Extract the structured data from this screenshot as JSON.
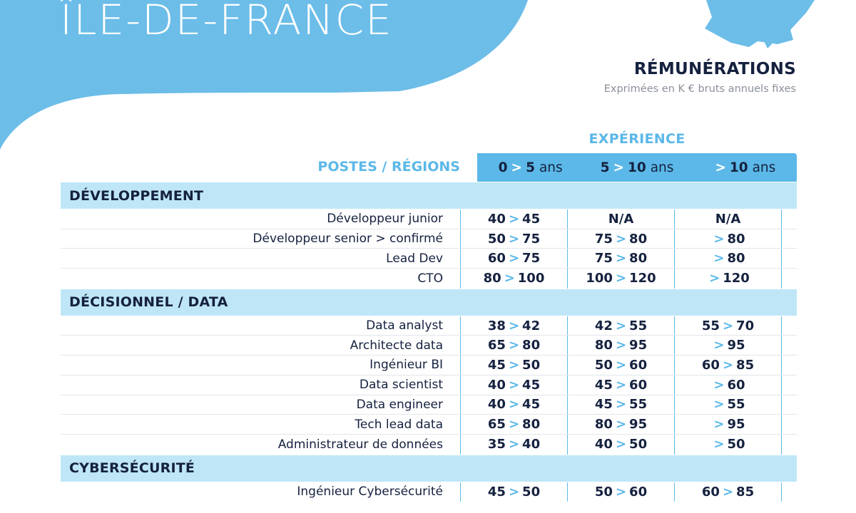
{
  "page": {
    "region": "ÎLE-DE-FRANCE",
    "remunerations_title": "RÉMUNÉRATIONS",
    "remunerations_subtitle": "Exprimées en K € bruts annuels fixes",
    "experience_title": "EXPÉRIENCE",
    "postes_label": "POSTES / RÉGIONS"
  },
  "colors": {
    "accent": "#5bb8e8",
    "section_bg": "#bfe6f7",
    "text_dark": "#15213f",
    "text_muted": "#8a8f99"
  },
  "experience_columns": [
    {
      "from": "0",
      "sep": ">",
      "to": "5",
      "unit": "ans"
    },
    {
      "from": "5",
      "sep": ">",
      "to": "10",
      "unit": "ans"
    },
    {
      "from": "",
      "sep": ">",
      "to": "10",
      "unit": "ans"
    }
  ],
  "sections": [
    {
      "title": "DÉVELOPPEMENT",
      "rows": [
        {
          "label": "Développeur junior",
          "values": [
            [
              "40",
              "45"
            ],
            [
              "",
              "N/A"
            ],
            [
              "",
              "N/A"
            ]
          ]
        },
        {
          "label": "Développeur senior > confirmé",
          "values": [
            [
              "50",
              "75"
            ],
            [
              "75",
              "80"
            ],
            [
              ">",
              "80"
            ]
          ]
        },
        {
          "label": "Lead Dev",
          "values": [
            [
              "60",
              "75"
            ],
            [
              "75",
              "80"
            ],
            [
              ">",
              "80"
            ]
          ]
        },
        {
          "label": "CTO",
          "values": [
            [
              "80",
              "100"
            ],
            [
              "100",
              "120"
            ],
            [
              ">",
              "120"
            ]
          ]
        }
      ]
    },
    {
      "title": "DÉCISIONNEL / DATA",
      "rows": [
        {
          "label": "Data analyst",
          "values": [
            [
              "38",
              "42"
            ],
            [
              "42",
              "55"
            ],
            [
              "55",
              "70"
            ]
          ]
        },
        {
          "label": "Architecte data",
          "values": [
            [
              "65",
              "80"
            ],
            [
              "80",
              "95"
            ],
            [
              ">",
              "95"
            ]
          ]
        },
        {
          "label": "Ingénieur BI",
          "values": [
            [
              "45",
              "50"
            ],
            [
              "50",
              "60"
            ],
            [
              "60",
              "85"
            ]
          ]
        },
        {
          "label": "Data scientist",
          "values": [
            [
              "40",
              "45"
            ],
            [
              "45",
              "60"
            ],
            [
              ">",
              "60"
            ]
          ]
        },
        {
          "label": "Data engineer",
          "values": [
            [
              "40",
              "45"
            ],
            [
              "45",
              "55"
            ],
            [
              ">",
              "55"
            ]
          ]
        },
        {
          "label": "Tech lead data",
          "values": [
            [
              "65",
              "80"
            ],
            [
              "80",
              "95"
            ],
            [
              ">",
              "95"
            ]
          ]
        },
        {
          "label": "Administrateur de données",
          "values": [
            [
              "35",
              "40"
            ],
            [
              "40",
              "50"
            ],
            [
              ">",
              "50"
            ]
          ]
        }
      ]
    },
    {
      "title": "CYBERSÉCURITÉ",
      "rows": [
        {
          "label": "Ingénieur Cybersécurité",
          "values": [
            [
              "45",
              "50"
            ],
            [
              "50",
              "60"
            ],
            [
              "60",
              "85"
            ]
          ]
        }
      ]
    }
  ]
}
